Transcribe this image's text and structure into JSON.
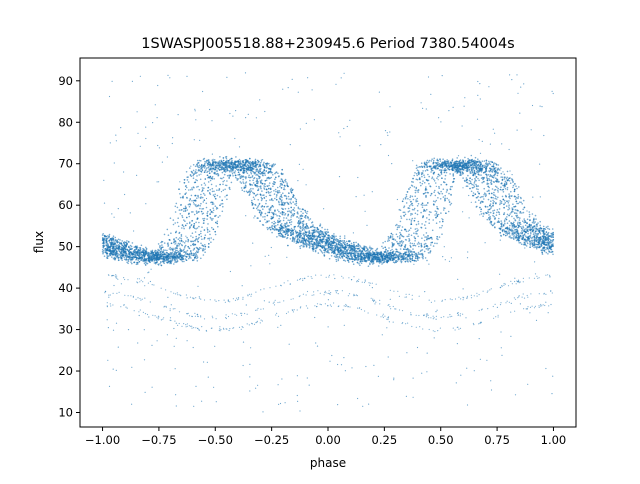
{
  "chart_data": {
    "type": "scatter",
    "title": "1SWASPJ005518.88+230945.6 Period 7380.54004s",
    "xlabel": "phase",
    "ylabel": "flux",
    "xlim": [
      -1.1,
      1.1
    ],
    "ylim": [
      6.5,
      95.5
    ],
    "xticks": [
      -1.0,
      -0.75,
      -0.5,
      -0.25,
      0.0,
      0.25,
      0.5,
      0.75,
      1.0
    ],
    "xtick_labels": [
      "−1.00",
      "−0.75",
      "−0.50",
      "−0.25",
      "0.00",
      "0.25",
      "0.50",
      "0.75",
      "1.00"
    ],
    "yticks": [
      10,
      20,
      30,
      40,
      50,
      60,
      70,
      80,
      90
    ],
    "ytick_labels": [
      "10",
      "20",
      "30",
      "40",
      "50",
      "60",
      "70",
      "80",
      "90"
    ],
    "grid": false,
    "series_color": "#1f77b4",
    "profile": {
      "phase": [
        -1.0,
        -0.9,
        -0.8,
        -0.7,
        -0.65,
        -0.6,
        -0.55,
        -0.5,
        -0.45,
        -0.4,
        -0.35,
        -0.3,
        -0.25,
        -0.2,
        -0.1,
        0.0,
        0.1,
        0.2,
        0.3,
        0.35,
        0.4,
        0.45,
        0.5,
        0.55,
        0.6,
        0.65,
        0.7,
        0.75,
        0.8,
        0.9,
        1.0
      ],
      "flux": [
        50,
        48,
        47,
        48,
        52,
        60,
        68,
        70,
        70,
        69.5,
        68,
        64,
        59,
        55,
        52,
        50,
        48,
        47,
        48,
        52,
        60,
        68,
        70,
        70,
        69.5,
        68,
        64,
        59,
        55,
        52,
        50
      ]
    },
    "faint_branch_levels": [
      33,
      36,
      40
    ],
    "outlier_range": [
      10,
      92
    ]
  }
}
